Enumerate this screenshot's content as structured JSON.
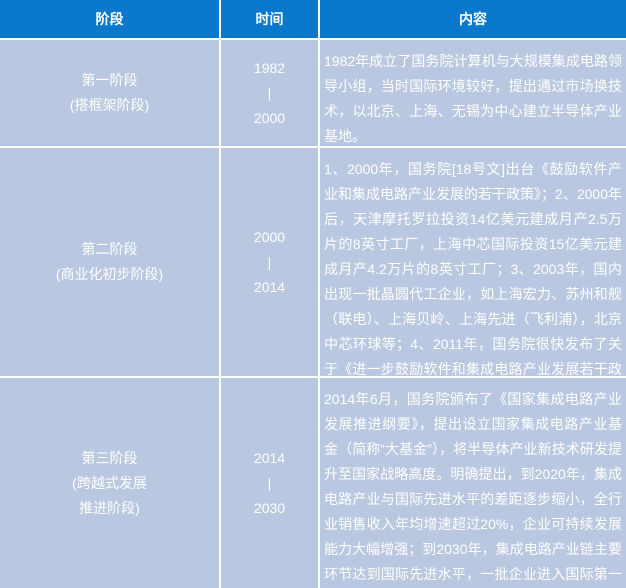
{
  "colors": {
    "header_background": "#0a78cd",
    "cell_background": "#b9c8e0",
    "grid_gap": "#ffffff",
    "text": "#ffffff"
  },
  "table": {
    "columns": [
      "阶段",
      "时间",
      "内容"
    ],
    "rows": [
      {
        "stage": "第一阶段\n(搭框架阶段)",
        "time": "1982\n|\n2000",
        "content": "1982年成立了国务院计算机与大规模集成电路领导小组，当时国际环境较好，提出通过市场换技术，以北京、上海、无锡为中心建立半导体产业基地。"
      },
      {
        "stage": "第二阶段\n(商业化初步阶段)",
        "time": "2000\n|\n2014",
        "content": "1、2000年，国务院[18号文]出台《鼓励软件产业和集成电路产业发展的若干政策》；2、2000年后，天津摩托罗拉投资14亿美元建成月产2.5万片的8英寸工厂，上海中芯国际投资15亿美元建成月产4.2万片的8英寸工厂；3、2003年，国内出现一批晶圆代工企业，如上海宏力、苏州和舰（联电）、上海贝岭、上海先进（飞利浦），北京中芯环球等；4、2011年，国务院很快发布了关于《进一步鼓励软件和集成电路产业发展若干政策》的通知。"
      },
      {
        "stage": "第三阶段\n(跨越式发展\n推进阶段)",
        "time": "2014\n|\n2030",
        "content": "2014年6月，国务院颁布了《国家集成电路产业发展推进纲要》，提出设立国家集成电路产业基金（简称“大基金”），将半导体产业新技术研发提升至国家战略高度。明确提出，到2020年，集成电路产业与国际先进水平的差距逐步缩小，全行业销售收入年均增速超过20%，企业可持续发展能力大幅增强；到2030年，集成电路产业链主要环节达到国际先进水平，一批企业进入国际第一梯队，实现跨越发展。"
      }
    ]
  }
}
